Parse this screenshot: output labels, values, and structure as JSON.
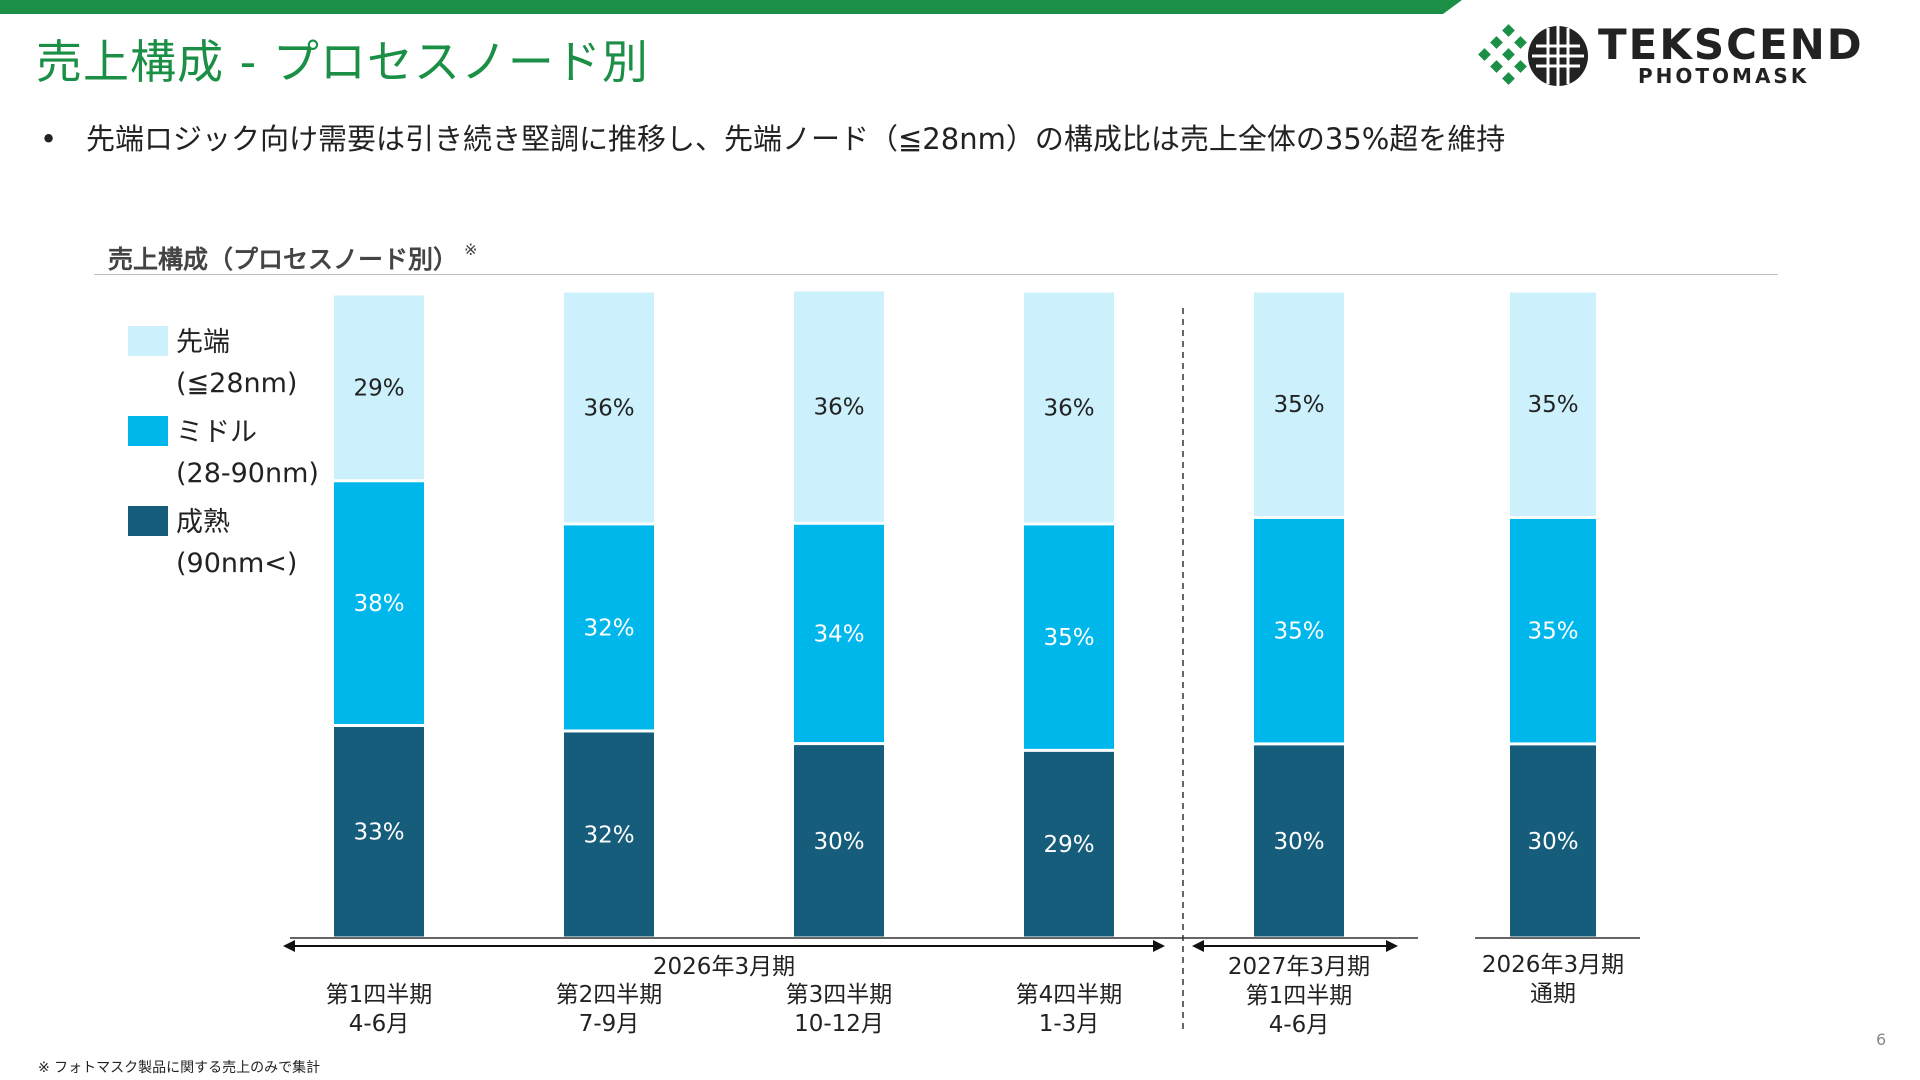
{
  "header": {
    "title": "売上構成 - プロセスノード別",
    "logo_word": "TEKSCEND",
    "logo_sub": "PHOTOMASK"
  },
  "bullet": {
    "marker": "•",
    "text": "先端ロジック向け需要は引き続き堅調に推移し、先端ノード（≦28nm）の構成比は売上全体の35%超を維持"
  },
  "chart_heading": {
    "text": "売上構成（プロセスノード別）",
    "note_mark": "※"
  },
  "legend": [
    {
      "label_line1": "先端",
      "label_line2": "(≦28nm)",
      "color": "#ccf1fc"
    },
    {
      "label_line1": "ミドル",
      "label_line2": "(28-90nm)",
      "color": "#00b7ec"
    },
    {
      "label_line1": "成熟",
      "label_line2": "(90nm<)",
      "color": "#165d7c"
    }
  ],
  "chart_data": {
    "type": "bar",
    "stacked": true,
    "percent_of_total": true,
    "categories": [
      [
        "第1四半期",
        "4-6月"
      ],
      [
        "第2四半期",
        "7-9月"
      ],
      [
        "第3四半期",
        "10-12月"
      ],
      [
        "第4四半期",
        "1-3月"
      ],
      [
        "2027年3月期",
        "第1四半期",
        "4-6月"
      ],
      [
        "2026年3月期",
        "通期"
      ]
    ],
    "groups": [
      {
        "label": "2026年3月期",
        "categories": [
          0,
          1,
          2,
          3
        ]
      },
      {
        "label": "2027年3月期",
        "categories": [
          4
        ]
      }
    ],
    "series": [
      {
        "name": "成熟 (90nm<)",
        "color": "#165d7c",
        "values": [
          33,
          32,
          30,
          29,
          30,
          30
        ],
        "labels": [
          "33%",
          "32%",
          "30%",
          "29%",
          "30%",
          "30%"
        ]
      },
      {
        "name": "ミドル (28-90nm)",
        "color": "#00b7ec",
        "values": [
          38,
          32,
          34,
          35,
          35,
          35
        ],
        "labels": [
          "38%",
          "32%",
          "34%",
          "35%",
          "35%",
          "35%"
        ]
      },
      {
        "name": "先端 (≦28nm)",
        "color": "#ccf1fc",
        "values": [
          29,
          36,
          36,
          36,
          35,
          35
        ],
        "labels": [
          "29%",
          "36%",
          "36%",
          "36%",
          "35%",
          "35%"
        ]
      }
    ],
    "ylim": [
      0,
      100
    ],
    "grid": false,
    "legend_position": "left"
  },
  "footnote": "※ フォトマスク製品に関する売上のみで集計",
  "page_number": "6"
}
